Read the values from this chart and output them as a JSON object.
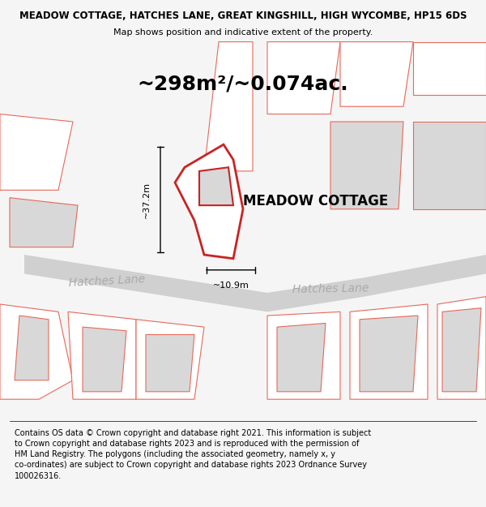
{
  "title_line1": "MEADOW COTTAGE, HATCHES LANE, GREAT KINGSHILL, HIGH WYCOMBE, HP15 6DS",
  "title_line2": "Map shows position and indicative extent of the property.",
  "area_text": "~298m²/~0.074ac.",
  "property_label": "MEADOW COTTAGE",
  "dim_vertical": "~37.2m",
  "dim_horizontal": "~10.9m",
  "road_label_left": "Hatches Lane",
  "road_label_right": "Hatches Lane",
  "footer_text": "Contains OS data © Crown copyright and database right 2021. This information is subject\nto Crown copyright and database rights 2023 and is reproduced with the permission of\nHM Land Registry. The polygons (including the associated geometry, namely x, y\nco-ordinates) are subject to Crown copyright and database rights 2023 Ordnance Survey\n100026316.",
  "bg_color": "#f5f5f5",
  "map_bg": "#ffffff",
  "road_color": "#d0d0d0",
  "plot_outline_color": "#e8685a",
  "main_plot_color": "#cc2222",
  "building_fill": "#d8d8d8",
  "title_fontsize": 8.5,
  "subtitle_fontsize": 8.0,
  "area_fontsize": 18,
  "label_fontsize": 12,
  "road_fontsize": 10,
  "footer_fontsize": 7.0
}
